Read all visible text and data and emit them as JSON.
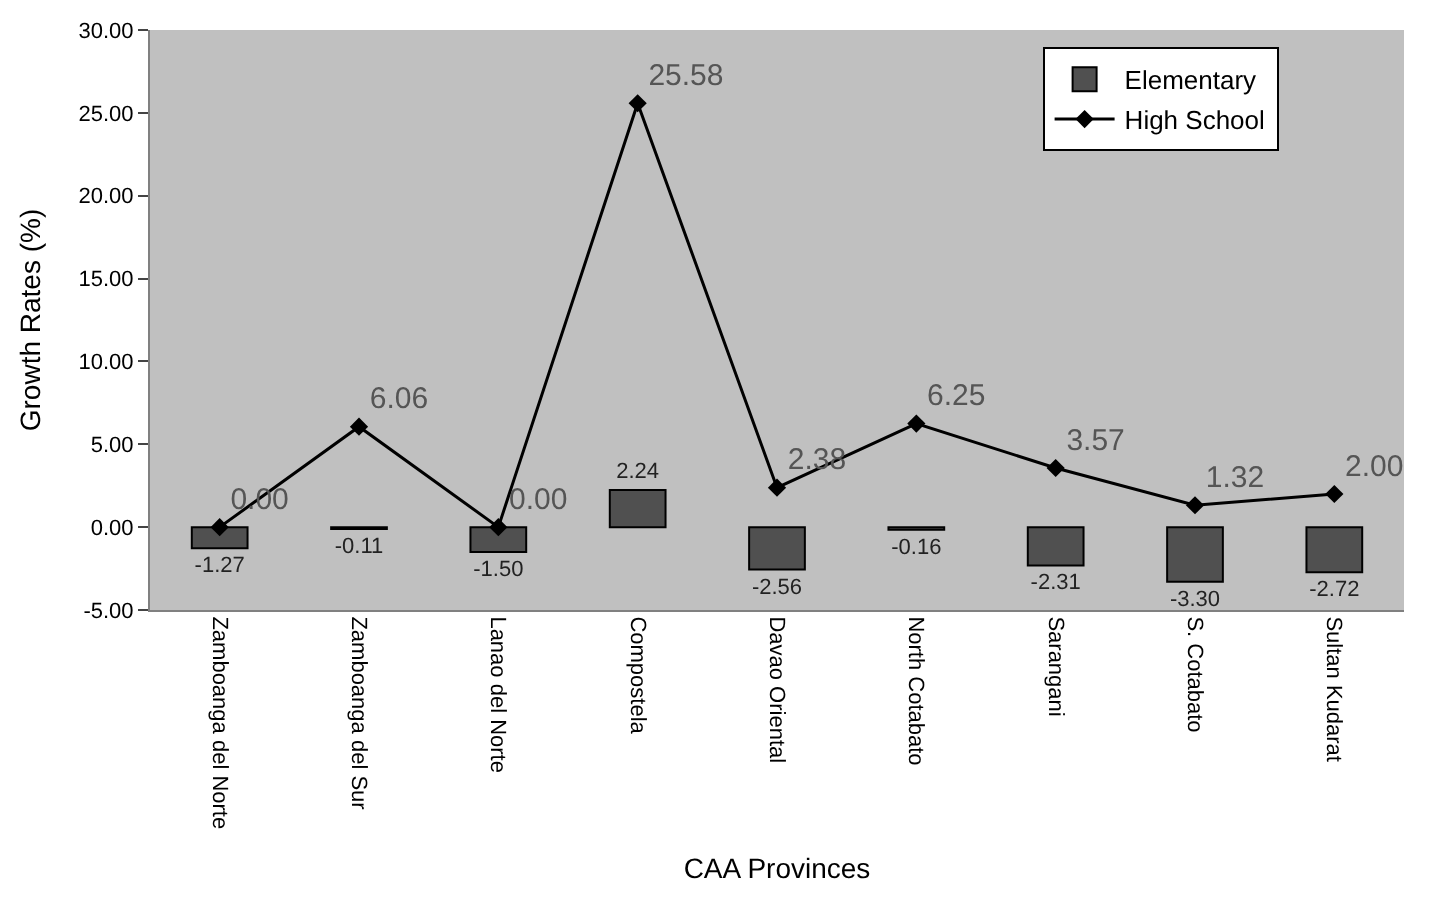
{
  "chart_data": {
    "type": "bar",
    "xlabel": "CAA Provinces",
    "ylabel": "Growth Rates (%)",
    "categories": [
      "Zamboanga del Norte",
      "Zamboanga del Sur",
      "Lanao del Norte",
      "Compostela",
      "Davao Oriental",
      "North Cotabato",
      "Sarangani",
      "S. Cotabato",
      "Sultan Kudarat"
    ],
    "series": [
      {
        "name": "Elementary",
        "color": "#505050",
        "values": [
          -1.27,
          -0.11,
          -1.5,
          2.24,
          -2.56,
          -0.16,
          -2.31,
          -3.3,
          -2.72
        ],
        "value_labels": [
          "-1.27",
          "-0.11",
          "-1.50",
          "2.24",
          "-2.56",
          "-0.16",
          "-2.31",
          "-3.30",
          "-2.72"
        ]
      },
      {
        "name": "High School",
        "type": "line",
        "color": "#000000",
        "marker": "diamond",
        "values": [
          0.0,
          6.06,
          0.0,
          25.58,
          2.38,
          6.25,
          3.57,
          1.32,
          2.0
        ],
        "value_labels": [
          "0.00",
          "6.06",
          "0.00",
          "25.58",
          "2.38",
          "6.25",
          "3.57",
          "1.32",
          "2.00"
        ]
      }
    ],
    "ylim": [
      -5,
      30
    ],
    "yticks": [
      {
        "value": -5,
        "label": "-5.00"
      },
      {
        "value": 0,
        "label": "0.00"
      },
      {
        "value": 5,
        "label": "5.00"
      },
      {
        "value": 10,
        "label": "10.00"
      },
      {
        "value": 15,
        "label": "15.00"
      },
      {
        "value": 20,
        "label": "20.00"
      },
      {
        "value": 25,
        "label": "25.00"
      },
      {
        "value": 30,
        "label": "30.00"
      }
    ],
    "grid": false,
    "legend": "top right"
  }
}
